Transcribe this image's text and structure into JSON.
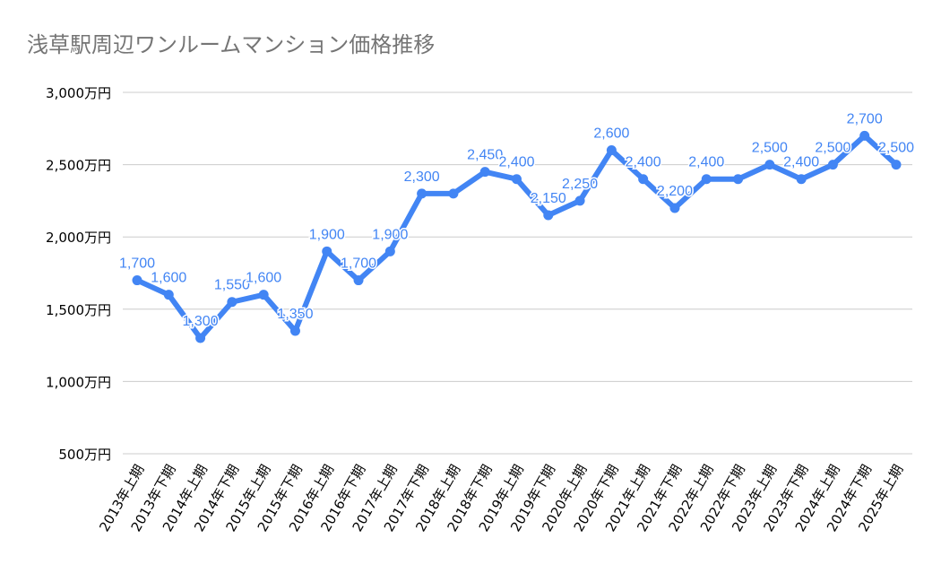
{
  "chart_data": {
    "type": "line",
    "title": "浅草駅周辺ワンルームマンション価格推移",
    "xlabel": "",
    "ylabel": "",
    "ylim": [
      500,
      3000
    ],
    "yticks": [
      "500万円",
      "1,000万円",
      "1,500万円",
      "2,000万円",
      "2,500万円",
      "3,000万円"
    ],
    "ytick_values": [
      500,
      1000,
      1500,
      2000,
      2500,
      3000
    ],
    "grid": true,
    "legend": "none",
    "color": "#4285f4",
    "categories": [
      "2013年上期",
      "2013年下期",
      "2014年上期",
      "2014年下期",
      "2015年上期",
      "2015年下期",
      "2016年上期",
      "2016年下期",
      "2017年上期",
      "2017年下期",
      "2018年上期",
      "2018年下期",
      "2019年上期",
      "2019年下期",
      "2020年上期",
      "2020年下期",
      "2021年上期",
      "2021年下期",
      "2022年上期",
      "2022年下期",
      "2023年上期",
      "2023年下期",
      "2024年上期",
      "2024年下期",
      "2025年上期"
    ],
    "values": [
      1700,
      1600,
      1300,
      1550,
      1600,
      1350,
      1900,
      1700,
      1900,
      2300,
      2300,
      2450,
      2400,
      2150,
      2250,
      2600,
      2400,
      2200,
      2400,
      2400,
      2500,
      2400,
      2500,
      2700,
      2500
    ],
    "data_labels": [
      "1,700",
      "1,600",
      "1,300",
      "1,550",
      "1,600",
      "1,350",
      "1,900",
      "1,700",
      "1,900",
      "2,300",
      "",
      "2,450",
      "2,400",
      "2,150",
      "2,250",
      "2,600",
      "2,400",
      "2,200",
      "2,400",
      "",
      "2,500",
      "2,400",
      "2,500",
      "2,700",
      "2,500"
    ]
  }
}
